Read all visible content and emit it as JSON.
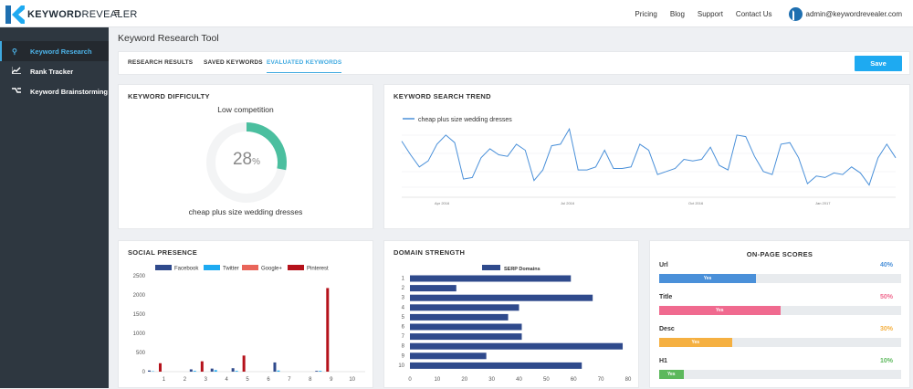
{
  "brand": {
    "logo_bold": "KEYWORD",
    "logo_light": "REVEALER"
  },
  "topnav": [
    "Pricing",
    "Blog",
    "Support",
    "Contact Us"
  ],
  "user_email": "admin@keywordrevealer.com",
  "sidebar": [
    {
      "label": "Keyword Research",
      "icon": "search-icon",
      "active": true
    },
    {
      "label": "Rank Tracker",
      "icon": "line-chart-icon",
      "active": false
    },
    {
      "label": "Keyword Brainstorming",
      "icon": "branch-icon",
      "active": false
    }
  ],
  "page_title": "Keyword Research Tool",
  "tabs": [
    "RESEARCH RESULTS",
    "SAVED KEYWORDS",
    "EVALUATED KEYWORDS"
  ],
  "active_tab": "EVALUATED KEYWORDS",
  "save_label": "Save",
  "colors": {
    "accent": "#1eaaf1",
    "gauge": "#4bbf9f",
    "line": "#4a90d9",
    "bar": "#2f4a8c",
    "url": "#4a90d9",
    "title": "#f06a8f",
    "desc": "#f5b041",
    "h1": "#5cb85c"
  },
  "difficulty": {
    "title": "KEYWORD DIFFICULTY",
    "label": "Low competition",
    "value_text": "28",
    "unit": "%",
    "value": 28,
    "keyword": "cheap plus size wedding dresses"
  },
  "search_trend": {
    "title": "KEYWORD SEARCH TREND",
    "legend": "cheap plus size wedding dresses",
    "x_ticks": [
      "Apr 2016",
      "Jul 2016",
      "Oct 2016",
      "Jan 2017"
    ]
  },
  "social": {
    "title": "SOCIAL PRESENCE",
    "legend": [
      "Facebook",
      "Twitter",
      "Google+",
      "Pinterest"
    ],
    "y_ticks": [
      "2500",
      "2000",
      "1500",
      "1000",
      "500",
      "0"
    ],
    "x_ticks": [
      "1",
      "2",
      "3",
      "4",
      "5",
      "6",
      "7",
      "8",
      "9",
      "10"
    ]
  },
  "domain": {
    "title": "DOMAIN STRENGTH",
    "legend": "SERP Domains",
    "y_ticks": [
      "1",
      "2",
      "3",
      "4",
      "5",
      "6",
      "7",
      "8",
      "9",
      "10"
    ],
    "x_ticks": [
      "0",
      "10",
      "20",
      "30",
      "40",
      "50",
      "60",
      "70",
      "80"
    ]
  },
  "onpage": {
    "title": "ON-PAGE SCORES",
    "rows": [
      {
        "label": "Url",
        "pct": "40%",
        "value": 40,
        "bar_text": "Yes",
        "color_key": "url"
      },
      {
        "label": "Title",
        "pct": "50%",
        "value": 50,
        "bar_text": "Yes",
        "color_key": "title"
      },
      {
        "label": "Desc",
        "pct": "30%",
        "value": 30,
        "bar_text": "Yes",
        "color_key": "desc"
      },
      {
        "label": "H1",
        "pct": "10%",
        "value": 10,
        "bar_text": "Yes",
        "color_key": "h1"
      }
    ]
  },
  "chart_data": [
    {
      "type": "line",
      "title": "KEYWORD SEARCH TREND",
      "series": [
        {
          "name": "cheap plus size wedding dresses",
          "values": [
            57,
            48,
            40,
            44,
            55,
            61,
            56,
            32,
            33,
            46,
            52,
            48,
            47,
            55,
            51,
            31,
            38,
            54,
            55,
            65,
            38,
            38,
            40,
            51,
            39,
            39,
            40,
            55,
            51,
            35,
            37,
            39,
            45,
            44,
            45,
            53,
            41,
            38,
            61,
            60,
            47,
            37,
            35,
            55,
            56,
            46,
            29,
            34,
            33,
            36,
            35,
            40,
            36,
            28,
            46,
            55,
            46
          ]
        }
      ],
      "x_ticks": [
        "Apr 2016",
        "Jul 2016",
        "Oct 2016",
        "Jan 2017"
      ]
    },
    {
      "type": "bar",
      "title": "SOCIAL PRESENCE",
      "categories": [
        "1",
        "2",
        "3",
        "4",
        "5",
        "6",
        "7",
        "8",
        "9",
        "10"
      ],
      "series": [
        {
          "name": "Facebook",
          "values": [
            30,
            0,
            60,
            80,
            90,
            0,
            240,
            0,
            20,
            0
          ]
        },
        {
          "name": "Twitter",
          "values": [
            10,
            0,
            20,
            40,
            20,
            0,
            30,
            0,
            20,
            0
          ]
        },
        {
          "name": "Google+",
          "values": [
            0,
            0,
            0,
            0,
            0,
            0,
            0,
            0,
            0,
            0
          ]
        },
        {
          "name": "Pinterest",
          "values": [
            220,
            0,
            270,
            0,
            420,
            0,
            0,
            0,
            2180,
            0
          ]
        }
      ],
      "ylim": [
        0,
        2500
      ]
    },
    {
      "type": "bar",
      "orientation": "horizontal",
      "title": "DOMAIN STRENGTH",
      "categories": [
        "1",
        "2",
        "3",
        "4",
        "5",
        "6",
        "7",
        "8",
        "9",
        "10"
      ],
      "series": [
        {
          "name": "SERP Domains",
          "values": [
            59,
            17,
            67,
            40,
            36,
            41,
            41,
            78,
            28,
            63
          ]
        }
      ],
      "xlim": [
        0,
        80
      ]
    }
  ]
}
